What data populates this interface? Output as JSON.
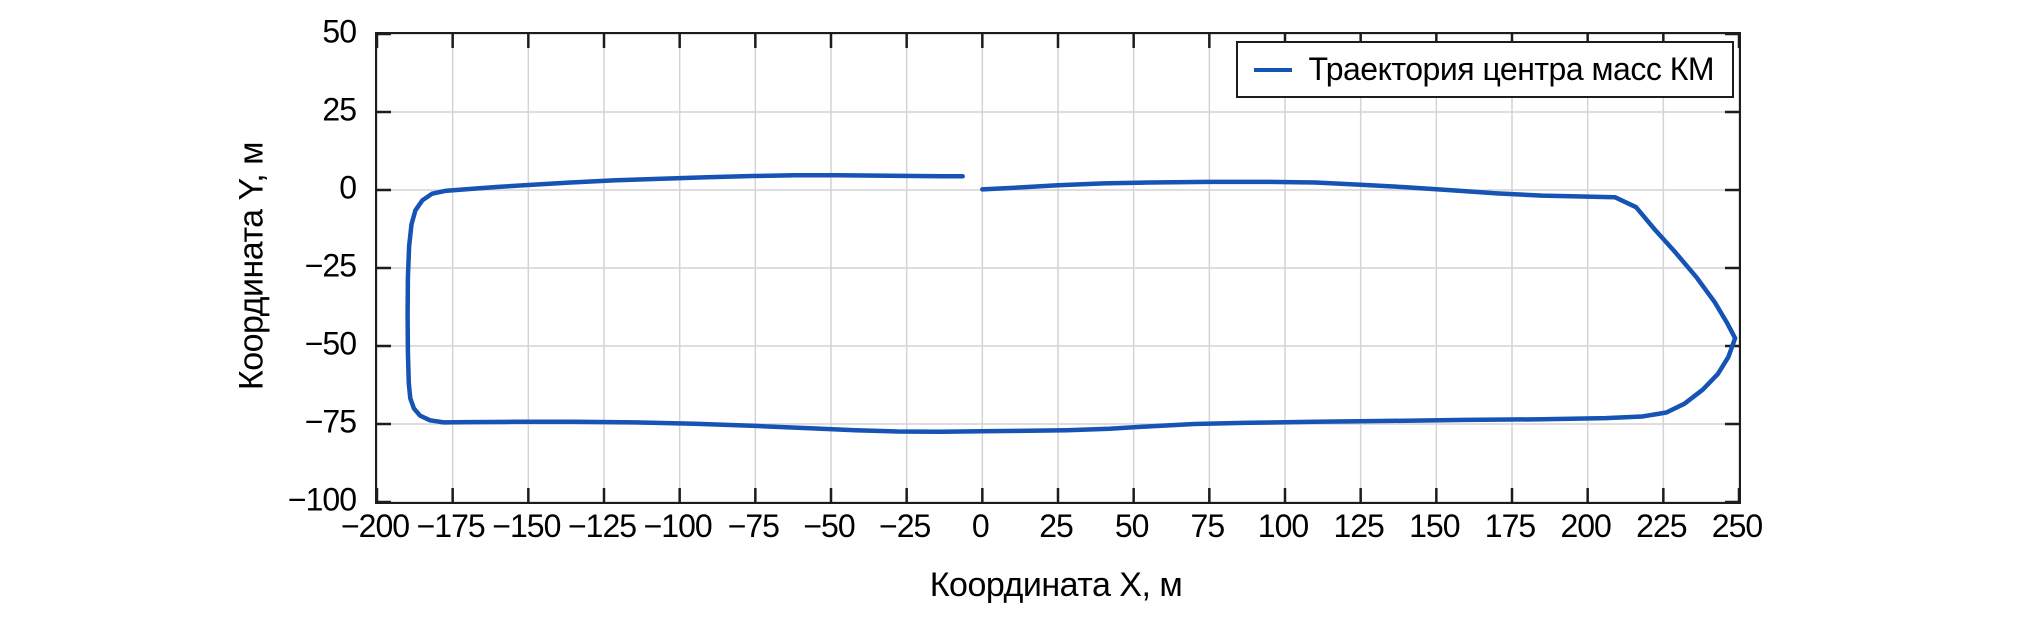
{
  "figure": {
    "background": "#ffffff",
    "grid_color": "#d4d4d4",
    "spine_color": "#1c1c1c",
    "line_color": "#1553b4"
  },
  "legend": {
    "label": "Траектория центра масс КМ",
    "position": "upper right",
    "line_color": "#1553b4"
  },
  "x_axis": {
    "title": "Координата X, м",
    "tick_labels": [
      "−200",
      "−175",
      "−150",
      "−125",
      "−100",
      "−75",
      "−50",
      "−25",
      "0",
      "25",
      "50",
      "75",
      "100",
      "125",
      "150",
      "175",
      "200",
      "225",
      "250"
    ],
    "tick_values": [
      -200,
      -175,
      -150,
      -125,
      -100,
      -75,
      -50,
      -25,
      0,
      25,
      50,
      75,
      100,
      125,
      150,
      175,
      200,
      225,
      250
    ]
  },
  "y_axis": {
    "title": "Координата Y, м",
    "tick_labels": [
      "50",
      "25",
      "0",
      "−25",
      "−50",
      "−75",
      "−100"
    ],
    "tick_values": [
      50,
      25,
      0,
      -25,
      -50,
      -75,
      -100
    ]
  },
  "chart_data": {
    "type": "line",
    "title": "",
    "xlabel": "Координата X, м",
    "ylabel": "Координата Y, м",
    "xlim": [
      -200,
      250
    ],
    "ylim": [
      -100,
      50
    ],
    "grid": true,
    "legend_position": "upper right",
    "series": [
      {
        "name": "Траектория центра масс КМ",
        "color": "#1553b4",
        "line_width": 4.5,
        "points": [
          [
            0,
            0.2
          ],
          [
            12,
            0.8
          ],
          [
            25,
            1.5
          ],
          [
            40,
            2.1
          ],
          [
            55,
            2.4
          ],
          [
            75,
            2.6
          ],
          [
            95,
            2.6
          ],
          [
            110,
            2.4
          ],
          [
            125,
            1.7
          ],
          [
            140,
            0.9
          ],
          [
            155,
            -0.1
          ],
          [
            170,
            -1.1
          ],
          [
            185,
            -1.8
          ],
          [
            200,
            -2.1
          ],
          [
            209,
            -2.3
          ],
          [
            216,
            -5.5
          ],
          [
            222,
            -12.5
          ],
          [
            229,
            -20
          ],
          [
            236,
            -28
          ],
          [
            242,
            -36
          ],
          [
            246,
            -42.5
          ],
          [
            248.7,
            -47.5
          ],
          [
            246.5,
            -53.5
          ],
          [
            243,
            -59
          ],
          [
            238,
            -64
          ],
          [
            232,
            -68.5
          ],
          [
            226,
            -71.3
          ],
          [
            218,
            -72.6
          ],
          [
            206,
            -73.1
          ],
          [
            185,
            -73.5
          ],
          [
            160,
            -73.7
          ],
          [
            135,
            -74
          ],
          [
            110,
            -74.3
          ],
          [
            88,
            -74.6
          ],
          [
            70,
            -75
          ],
          [
            56,
            -75.7
          ],
          [
            42,
            -76.5
          ],
          [
            28,
            -77
          ],
          [
            12,
            -77.2
          ],
          [
            0,
            -77.3
          ],
          [
            -14,
            -77.5
          ],
          [
            -28,
            -77.4
          ],
          [
            -42,
            -77
          ],
          [
            -56,
            -76.4
          ],
          [
            -75,
            -75.6
          ],
          [
            -95,
            -74.9
          ],
          [
            -115,
            -74.5
          ],
          [
            -135,
            -74.3
          ],
          [
            -155,
            -74.3
          ],
          [
            -170,
            -74.4
          ],
          [
            -178,
            -74.5
          ],
          [
            -182.5,
            -73.8
          ],
          [
            -185.8,
            -72.3
          ],
          [
            -187.8,
            -70
          ],
          [
            -189,
            -66.8
          ],
          [
            -189.5,
            -62
          ],
          [
            -189.8,
            -52
          ],
          [
            -189.9,
            -40
          ],
          [
            -189.8,
            -28
          ],
          [
            -189.4,
            -18
          ],
          [
            -188.6,
            -11
          ],
          [
            -187.3,
            -6.5
          ],
          [
            -185,
            -3.3
          ],
          [
            -181.8,
            -1.2
          ],
          [
            -177.5,
            -0.3
          ],
          [
            -170,
            0.3
          ],
          [
            -160,
            1.0
          ],
          [
            -150,
            1.6
          ],
          [
            -136,
            2.4
          ],
          [
            -121,
            3.1
          ],
          [
            -106,
            3.6
          ],
          [
            -91,
            4.1
          ],
          [
            -76,
            4.5
          ],
          [
            -62,
            4.7
          ],
          [
            -48,
            4.7
          ],
          [
            -35,
            4.6
          ],
          [
            -22,
            4.5
          ],
          [
            -13,
            4.4
          ],
          [
            -6.5,
            4.4
          ]
        ]
      }
    ]
  }
}
